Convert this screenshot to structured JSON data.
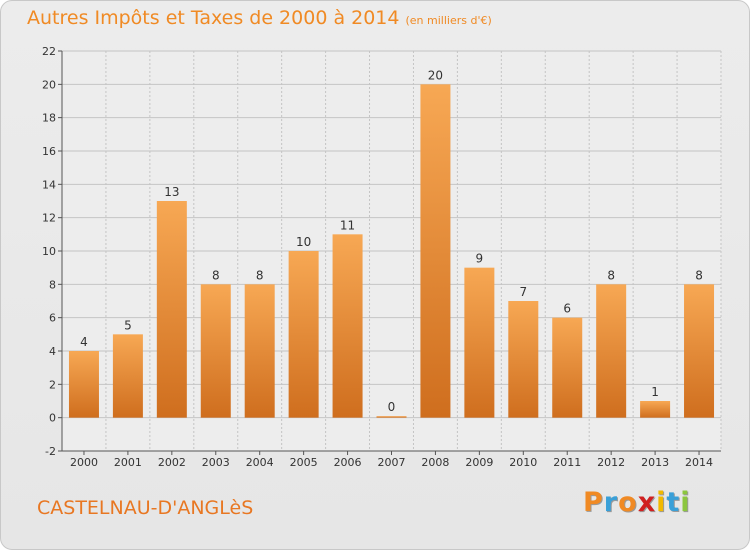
{
  "header": {
    "title": "Autres Impôts et Taxes de 2000 à 2014",
    "unit": "(en milliers d'€)"
  },
  "footer": {
    "commune": "CASTELNAU-D'ANGLèS",
    "brand": "Proxiti",
    "brand_colors": [
      "#f08a24",
      "#3aa0d8",
      "#f08a24",
      "#d02020",
      "#f2b900",
      "#3aa0d8",
      "#8cc63f"
    ]
  },
  "colors": {
    "bar_top": "#f7a854",
    "bar_bottom": "#cf6e1e",
    "title": "#f08a24"
  },
  "chart_data": {
    "type": "bar",
    "title": "Autres Impôts et Taxes de 2000 à 2014",
    "subtitle": "(en milliers d'€)",
    "categories": [
      "2000",
      "2001",
      "2002",
      "2003",
      "2004",
      "2005",
      "2006",
      "2007",
      "2008",
      "2009",
      "2010",
      "2011",
      "2012",
      "2013",
      "2014"
    ],
    "values": [
      4,
      5,
      13,
      8,
      8,
      10,
      11,
      0,
      20,
      9,
      7,
      6,
      8,
      1,
      8
    ],
    "ylim": [
      -2,
      22
    ],
    "yticks": [
      -2,
      0,
      2,
      4,
      6,
      8,
      10,
      12,
      14,
      16,
      18,
      20,
      22
    ],
    "grid": true,
    "legend": "none"
  }
}
